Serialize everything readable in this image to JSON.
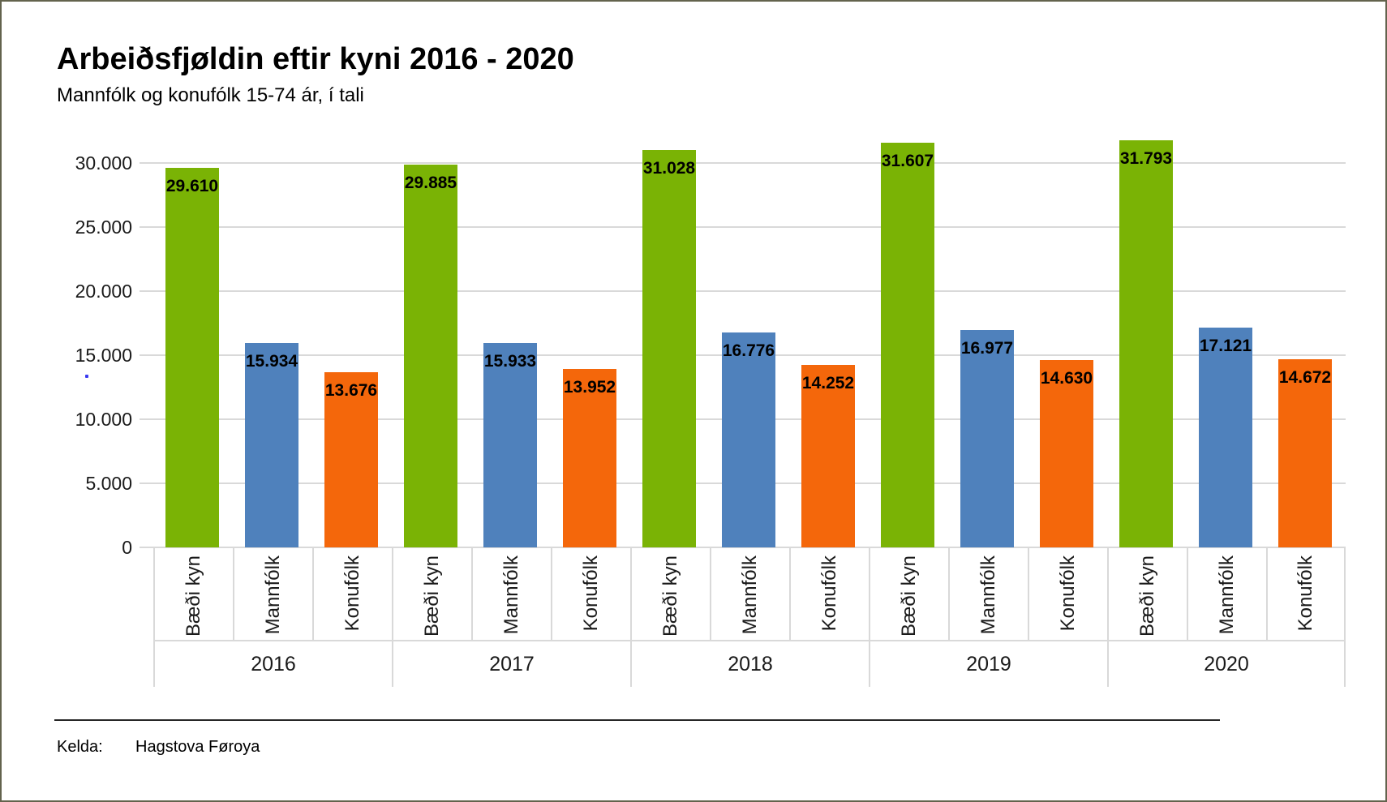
{
  "chart_data": {
    "type": "bar",
    "title": "Arbeiðsfjøldin eftir kyni 2016 - 2020",
    "subtitle": "Mannfólk og konufólk 15-74 ár, í tali",
    "groups": [
      "2016",
      "2017",
      "2018",
      "2019",
      "2020"
    ],
    "bar_order_per_group": [
      "Bæði kyn",
      "Mannfólk",
      "Konufólk"
    ],
    "series": [
      {
        "name": "Bæði kyn",
        "color": "#7ab305",
        "values": [
          29610,
          29885,
          31028,
          31607,
          31793
        ],
        "labels": [
          "29.610",
          "29.885",
          "31.028",
          "31.607",
          "31.793"
        ]
      },
      {
        "name": "Mannfólk",
        "color": "#4f81bc",
        "values": [
          15934,
          15933,
          16776,
          16977,
          17121
        ],
        "labels": [
          "15.934",
          "15.933",
          "16.776",
          "16.977",
          "17.121"
        ]
      },
      {
        "name": "Konufólk",
        "color": "#f4670b",
        "values": [
          13676,
          13952,
          14252,
          14630,
          14672
        ],
        "labels": [
          "13.676",
          "13.952",
          "14.252",
          "14.630",
          "14.672"
        ]
      }
    ],
    "y_axis": {
      "tick_values": [
        0,
        5000,
        10000,
        15000,
        20000,
        25000,
        30000
      ],
      "tick_labels": [
        "0",
        "5.000",
        "10.000",
        "15.000",
        "20.000",
        "25.000",
        "30.000"
      ],
      "range_shown": [
        0,
        32000
      ]
    },
    "grid": "horizontal light-gray gridlines",
    "legend_position": "none (category labels under each bar)",
    "value_labels_position": "inside bar, near top"
  },
  "footer": {
    "source_label": "Kelda:",
    "source_value": "Hagstova Føroya"
  },
  "colors": {
    "grid": "#d9d9d9",
    "frame_border": "#63634d",
    "text": "#000000"
  }
}
